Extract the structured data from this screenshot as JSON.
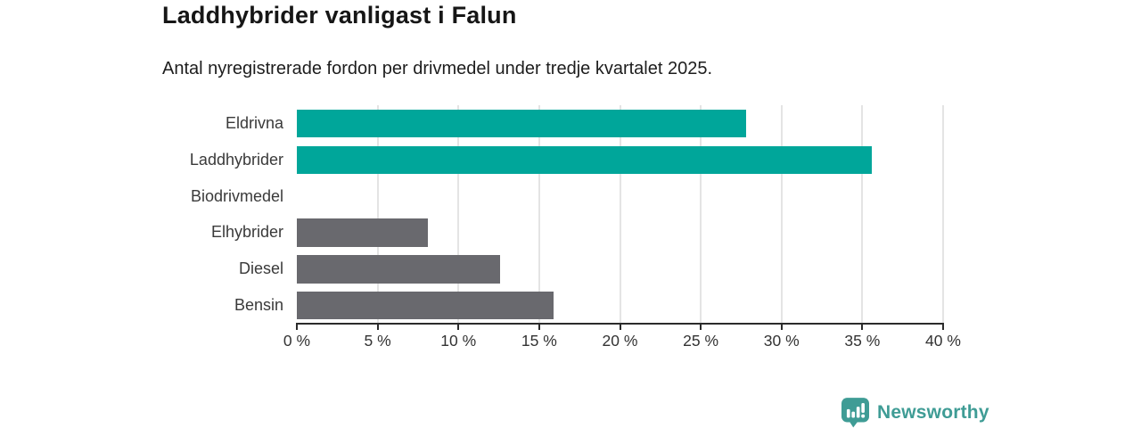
{
  "header": {
    "title": "Laddhybrider vanligast i Falun",
    "subtitle": "Antal nyregistrerade fordon per drivmedel under tredje kvartalet 2025."
  },
  "chart_data": {
    "type": "bar",
    "orientation": "horizontal",
    "categories": [
      "Eldrivna",
      "Laddhybrider",
      "Biodrivmedel",
      "Elhybrider",
      "Diesel",
      "Bensin"
    ],
    "values": [
      27.8,
      35.6,
      0,
      8.1,
      12.6,
      15.9
    ],
    "unit": "%",
    "xlim": [
      0,
      40
    ],
    "tick_values": [
      0,
      5,
      10,
      15,
      20,
      25,
      30,
      35,
      40
    ],
    "tick_labels": [
      "0 %",
      "5 %",
      "10 %",
      "15 %",
      "20 %",
      "25 %",
      "30 %",
      "35 %",
      "40 %"
    ],
    "grid": "vertical",
    "legend": "none",
    "colors": {
      "highlight": "#00a69a",
      "muted": "#69696e"
    },
    "bar_color_keys": [
      "highlight",
      "highlight",
      "muted",
      "muted",
      "muted",
      "muted"
    ],
    "title": "Laddhybrider vanligast i Falun",
    "xlabel": "",
    "ylabel": ""
  },
  "footer": {
    "brand": "Newsworthy",
    "brand_color": "#3f9c95",
    "logo_icon": "bar-chart-speech-bubble-icon"
  }
}
